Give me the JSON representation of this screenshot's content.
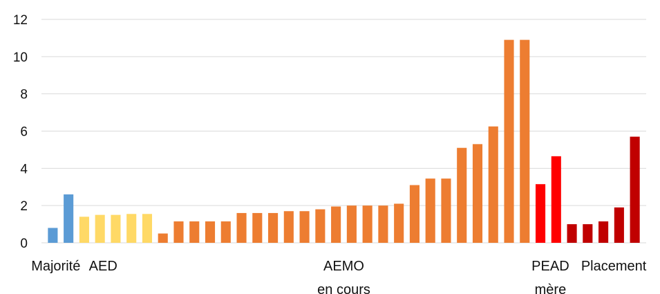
{
  "chart_data": {
    "type": "bar",
    "title": "",
    "xlabel": "",
    "ylabel": "",
    "ylim": [
      0,
      12
    ],
    "yticks": [
      0,
      2,
      4,
      6,
      8,
      10,
      12
    ],
    "grid": true,
    "legend": "none",
    "groups": [
      {
        "label_lines": [
          "Majorité"
        ],
        "color": "#5b9bd5",
        "values": [
          0.8,
          2.6
        ]
      },
      {
        "label_lines": [
          "AED"
        ],
        "color": "#ffd966",
        "values": [
          1.4,
          1.5,
          1.5,
          1.55,
          1.55
        ]
      },
      {
        "label_lines": [
          "AEMO",
          "en cours"
        ],
        "color": "#ed7d31",
        "values": [
          0.5,
          1.15,
          1.15,
          1.15,
          1.15,
          1.6,
          1.6,
          1.6,
          1.7,
          1.7,
          1.8,
          1.95,
          2.0,
          2.0,
          2.0,
          2.1,
          3.1,
          3.45,
          3.45,
          5.1,
          5.3,
          6.25,
          10.9,
          10.9
        ]
      },
      {
        "label_lines": [
          "PEAD",
          "mère"
        ],
        "color": "#ff0000",
        "values": [
          3.15,
          4.65
        ]
      },
      {
        "label_lines": [
          "Placement"
        ],
        "color": "#c00000",
        "values": [
          1.0,
          1.0,
          1.15,
          1.9,
          5.7
        ]
      }
    ]
  }
}
